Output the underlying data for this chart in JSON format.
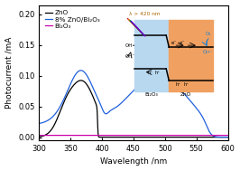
{
  "xlim": [
    300,
    600
  ],
  "ylim": [
    -0.005,
    0.215
  ],
  "xlabel": "Wavelength /nm",
  "ylabel": "Photocurrent /mA",
  "yticks": [
    0.0,
    0.05,
    0.1,
    0.15,
    0.2
  ],
  "xticks": [
    300,
    350,
    400,
    450,
    500,
    550,
    600
  ],
  "line_ZnO_color": "#000000",
  "line_ZnO_Bi2O3_color": "#2060dd",
  "line_Bi2O3_color": "#cc00aa",
  "legend_labels": [
    "ZnO",
    "8% ZnO/Bi₂O₃",
    "Bi₂O₃"
  ],
  "inset_label": "λ > 420 nm",
  "inset_bi2o3_label": "Bi₂O₃",
  "inset_zno_label": "ZnO",
  "inset_bi2o3_bg": "#b8d8f0",
  "inset_zno_bg": "#f0a060",
  "o2_color": "#2080cc",
  "rainbow_colors": [
    "#cc0000",
    "#ff6600",
    "#00aa00",
    "#0000ff",
    "#8800cc"
  ]
}
